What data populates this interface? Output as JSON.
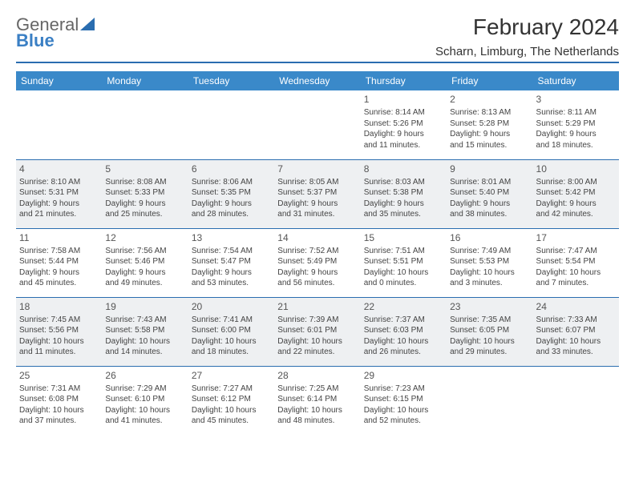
{
  "logo": {
    "line1": "General",
    "line2": "Blue"
  },
  "title": "February 2024",
  "location": "Scharn, Limburg, The Netherlands",
  "colors": {
    "header_bg": "#3a89c9",
    "header_text": "#ffffff",
    "rule": "#2a6db0",
    "alt_row": "#eef0f2",
    "text": "#444444"
  },
  "day_headers": [
    "Sunday",
    "Monday",
    "Tuesday",
    "Wednesday",
    "Thursday",
    "Friday",
    "Saturday"
  ],
  "weeks": [
    [
      null,
      null,
      null,
      null,
      {
        "n": "1",
        "sr": "Sunrise: 8:14 AM",
        "ss": "Sunset: 5:26 PM",
        "d1": "Daylight: 9 hours",
        "d2": "and 11 minutes."
      },
      {
        "n": "2",
        "sr": "Sunrise: 8:13 AM",
        "ss": "Sunset: 5:28 PM",
        "d1": "Daylight: 9 hours",
        "d2": "and 15 minutes."
      },
      {
        "n": "3",
        "sr": "Sunrise: 8:11 AM",
        "ss": "Sunset: 5:29 PM",
        "d1": "Daylight: 9 hours",
        "d2": "and 18 minutes."
      }
    ],
    [
      {
        "n": "4",
        "sr": "Sunrise: 8:10 AM",
        "ss": "Sunset: 5:31 PM",
        "d1": "Daylight: 9 hours",
        "d2": "and 21 minutes."
      },
      {
        "n": "5",
        "sr": "Sunrise: 8:08 AM",
        "ss": "Sunset: 5:33 PM",
        "d1": "Daylight: 9 hours",
        "d2": "and 25 minutes."
      },
      {
        "n": "6",
        "sr": "Sunrise: 8:06 AM",
        "ss": "Sunset: 5:35 PM",
        "d1": "Daylight: 9 hours",
        "d2": "and 28 minutes."
      },
      {
        "n": "7",
        "sr": "Sunrise: 8:05 AM",
        "ss": "Sunset: 5:37 PM",
        "d1": "Daylight: 9 hours",
        "d2": "and 31 minutes."
      },
      {
        "n": "8",
        "sr": "Sunrise: 8:03 AM",
        "ss": "Sunset: 5:38 PM",
        "d1": "Daylight: 9 hours",
        "d2": "and 35 minutes."
      },
      {
        "n": "9",
        "sr": "Sunrise: 8:01 AM",
        "ss": "Sunset: 5:40 PM",
        "d1": "Daylight: 9 hours",
        "d2": "and 38 minutes."
      },
      {
        "n": "10",
        "sr": "Sunrise: 8:00 AM",
        "ss": "Sunset: 5:42 PM",
        "d1": "Daylight: 9 hours",
        "d2": "and 42 minutes."
      }
    ],
    [
      {
        "n": "11",
        "sr": "Sunrise: 7:58 AM",
        "ss": "Sunset: 5:44 PM",
        "d1": "Daylight: 9 hours",
        "d2": "and 45 minutes."
      },
      {
        "n": "12",
        "sr": "Sunrise: 7:56 AM",
        "ss": "Sunset: 5:46 PM",
        "d1": "Daylight: 9 hours",
        "d2": "and 49 minutes."
      },
      {
        "n": "13",
        "sr": "Sunrise: 7:54 AM",
        "ss": "Sunset: 5:47 PM",
        "d1": "Daylight: 9 hours",
        "d2": "and 53 minutes."
      },
      {
        "n": "14",
        "sr": "Sunrise: 7:52 AM",
        "ss": "Sunset: 5:49 PM",
        "d1": "Daylight: 9 hours",
        "d2": "and 56 minutes."
      },
      {
        "n": "15",
        "sr": "Sunrise: 7:51 AM",
        "ss": "Sunset: 5:51 PM",
        "d1": "Daylight: 10 hours",
        "d2": "and 0 minutes."
      },
      {
        "n": "16",
        "sr": "Sunrise: 7:49 AM",
        "ss": "Sunset: 5:53 PM",
        "d1": "Daylight: 10 hours",
        "d2": "and 3 minutes."
      },
      {
        "n": "17",
        "sr": "Sunrise: 7:47 AM",
        "ss": "Sunset: 5:54 PM",
        "d1": "Daylight: 10 hours",
        "d2": "and 7 minutes."
      }
    ],
    [
      {
        "n": "18",
        "sr": "Sunrise: 7:45 AM",
        "ss": "Sunset: 5:56 PM",
        "d1": "Daylight: 10 hours",
        "d2": "and 11 minutes."
      },
      {
        "n": "19",
        "sr": "Sunrise: 7:43 AM",
        "ss": "Sunset: 5:58 PM",
        "d1": "Daylight: 10 hours",
        "d2": "and 14 minutes."
      },
      {
        "n": "20",
        "sr": "Sunrise: 7:41 AM",
        "ss": "Sunset: 6:00 PM",
        "d1": "Daylight: 10 hours",
        "d2": "and 18 minutes."
      },
      {
        "n": "21",
        "sr": "Sunrise: 7:39 AM",
        "ss": "Sunset: 6:01 PM",
        "d1": "Daylight: 10 hours",
        "d2": "and 22 minutes."
      },
      {
        "n": "22",
        "sr": "Sunrise: 7:37 AM",
        "ss": "Sunset: 6:03 PM",
        "d1": "Daylight: 10 hours",
        "d2": "and 26 minutes."
      },
      {
        "n": "23",
        "sr": "Sunrise: 7:35 AM",
        "ss": "Sunset: 6:05 PM",
        "d1": "Daylight: 10 hours",
        "d2": "and 29 minutes."
      },
      {
        "n": "24",
        "sr": "Sunrise: 7:33 AM",
        "ss": "Sunset: 6:07 PM",
        "d1": "Daylight: 10 hours",
        "d2": "and 33 minutes."
      }
    ],
    [
      {
        "n": "25",
        "sr": "Sunrise: 7:31 AM",
        "ss": "Sunset: 6:08 PM",
        "d1": "Daylight: 10 hours",
        "d2": "and 37 minutes."
      },
      {
        "n": "26",
        "sr": "Sunrise: 7:29 AM",
        "ss": "Sunset: 6:10 PM",
        "d1": "Daylight: 10 hours",
        "d2": "and 41 minutes."
      },
      {
        "n": "27",
        "sr": "Sunrise: 7:27 AM",
        "ss": "Sunset: 6:12 PM",
        "d1": "Daylight: 10 hours",
        "d2": "and 45 minutes."
      },
      {
        "n": "28",
        "sr": "Sunrise: 7:25 AM",
        "ss": "Sunset: 6:14 PM",
        "d1": "Daylight: 10 hours",
        "d2": "and 48 minutes."
      },
      {
        "n": "29",
        "sr": "Sunrise: 7:23 AM",
        "ss": "Sunset: 6:15 PM",
        "d1": "Daylight: 10 hours",
        "d2": "and 52 minutes."
      },
      null,
      null
    ]
  ]
}
